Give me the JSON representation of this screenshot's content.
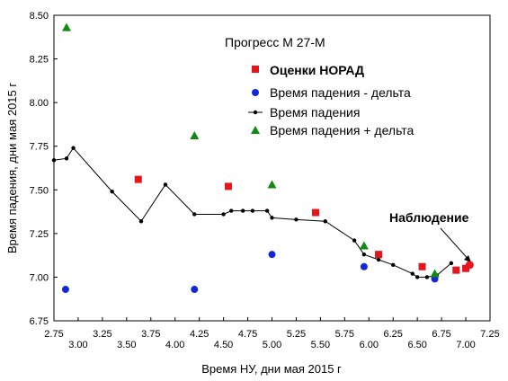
{
  "chart_data": {
    "type": "scatter",
    "title": "Прогресс М 27-М",
    "xlabel": "Время НУ, дни мая 2015 г",
    "ylabel": "Время падения, дни мая 2015 г",
    "xlim": [
      2.75,
      7.25
    ],
    "ylim": [
      6.75,
      8.5
    ],
    "x_ticks": [
      "2.75",
      "3.00",
      "3.25",
      "3.50",
      "3.75",
      "4.00",
      "4.25",
      "4.50",
      "4.75",
      "5.00",
      "5.25",
      "5.50",
      "5.75",
      "6.00",
      "6.25",
      "6.50",
      "6.75",
      "7.00",
      "7.25"
    ],
    "y_ticks": [
      "6.75",
      "7.00",
      "7.25",
      "7.50",
      "7.75",
      "8.00",
      "8.25",
      "8.50"
    ],
    "grid": false,
    "legend_position": "top-right",
    "series": [
      {
        "name": "Оценки НОРАД",
        "marker": "square",
        "color": "#e8141c",
        "points": [
          [
            3.62,
            7.56
          ],
          [
            4.55,
            7.52
          ],
          [
            5.45,
            7.37
          ],
          [
            6.1,
            7.13
          ],
          [
            6.55,
            7.06
          ],
          [
            6.9,
            7.04
          ],
          [
            7.0,
            7.05
          ]
        ]
      },
      {
        "name": "Время падения - дельта",
        "marker": "circle",
        "color": "#1428d8",
        "points": [
          [
            2.87,
            6.93
          ],
          [
            4.2,
            6.93
          ],
          [
            5.0,
            7.13
          ],
          [
            5.95,
            7.06
          ],
          [
            6.68,
            6.99
          ]
        ]
      },
      {
        "name": "Время падения",
        "marker": "line-dot",
        "color": "#000000",
        "points": [
          [
            2.75,
            7.67
          ],
          [
            2.88,
            7.68
          ],
          [
            2.95,
            7.74
          ],
          [
            3.35,
            7.49
          ],
          [
            3.65,
            7.32
          ],
          [
            3.9,
            7.53
          ],
          [
            4.2,
            7.36
          ],
          [
            4.5,
            7.36
          ],
          [
            4.58,
            7.38
          ],
          [
            4.7,
            7.38
          ],
          [
            4.8,
            7.38
          ],
          [
            4.95,
            7.38
          ],
          [
            5.0,
            7.34
          ],
          [
            5.25,
            7.33
          ],
          [
            5.55,
            7.32
          ],
          [
            5.85,
            7.21
          ],
          [
            5.95,
            7.13
          ],
          [
            6.1,
            7.1
          ],
          [
            6.25,
            7.07
          ],
          [
            6.45,
            7.02
          ],
          [
            6.5,
            7.0
          ],
          [
            6.6,
            7.0
          ],
          [
            6.7,
            7.01
          ],
          [
            6.85,
            7.08
          ]
        ]
      },
      {
        "name": "Время падения + дельта",
        "marker": "triangle",
        "color": "#108a10",
        "points": [
          [
            2.88,
            8.43
          ],
          [
            4.2,
            7.81
          ],
          [
            5.0,
            7.53
          ],
          [
            5.95,
            7.18
          ],
          [
            6.68,
            7.02
          ]
        ]
      }
    ],
    "annotation": {
      "text": "Наблюдение",
      "point": [
        7.04,
        7.07
      ],
      "color": "#e8141c"
    }
  }
}
